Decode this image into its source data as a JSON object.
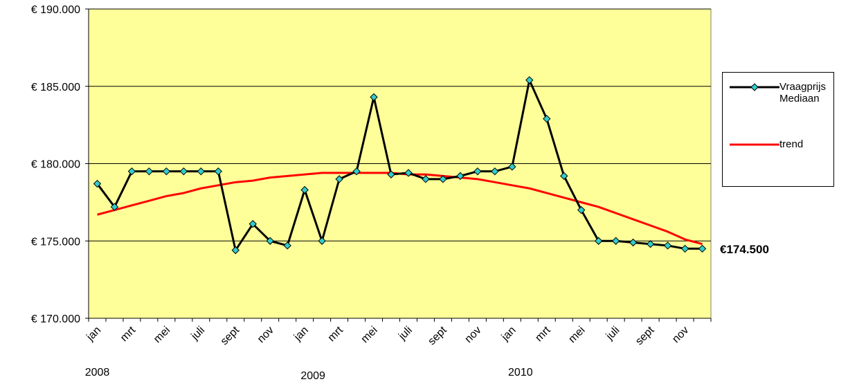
{
  "chart_data": {
    "type": "line",
    "categories": [
      "jan",
      null,
      "mrt",
      null,
      "mei",
      null,
      "juli",
      null,
      "sept",
      null,
      "nov",
      null,
      "jan",
      null,
      "mrt",
      null,
      "mei",
      null,
      "juli",
      null,
      "sept",
      null,
      "nov",
      null,
      "jan",
      null,
      "mrt",
      null,
      "mei",
      null,
      "juli",
      null,
      "sept",
      null,
      "nov",
      null
    ],
    "year_labels": [
      "2008",
      "2009",
      "2010"
    ],
    "series": [
      {
        "name": "Vraagprijs Mediaan",
        "color": "#000000",
        "marker_color": "#33CCCC",
        "values": [
          178700,
          177200,
          179500,
          179500,
          179500,
          179500,
          179500,
          179500,
          174400,
          176100,
          175000,
          174700,
          178300,
          175000,
          179000,
          179500,
          184300,
          179300,
          179400,
          179000,
          179000,
          179200,
          179500,
          179500,
          179800,
          185400,
          182900,
          179200,
          177000,
          175000,
          175000,
          174900,
          174800,
          174700,
          174500,
          174500
        ]
      },
      {
        "name": "trend",
        "color": "#FF0000",
        "values": [
          176700,
          177000,
          177300,
          177600,
          177900,
          178100,
          178400,
          178600,
          178800,
          178900,
          179100,
          179200,
          179300,
          179400,
          179400,
          179400,
          179400,
          179400,
          179300,
          179300,
          179200,
          179100,
          179000,
          178800,
          178600,
          178400,
          178100,
          177800,
          177500,
          177200,
          176800,
          176400,
          176000,
          175600,
          175100,
          174800
        ]
      }
    ],
    "end_label": "€174.500",
    "ylim": [
      170000,
      190000
    ],
    "yticks": [
      {
        "value": 170000,
        "label": "€ 170.000"
      },
      {
        "value": 175000,
        "label": "€ 175.000"
      },
      {
        "value": 180000,
        "label": "€ 180.000"
      },
      {
        "value": 185000,
        "label": "€ 185.000"
      },
      {
        "value": 190000,
        "label": "€ 190.000"
      }
    ],
    "grid": true,
    "plot_background": "#FFFF99",
    "legend": "right"
  }
}
